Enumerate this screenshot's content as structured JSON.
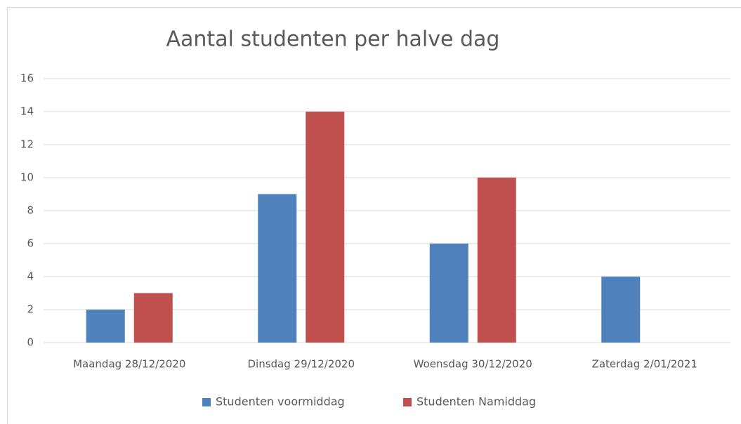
{
  "chart_data": {
    "type": "bar",
    "title": "Aantal studenten per halve dag",
    "categories": [
      "Maandag 28/12/2020",
      "Dinsdag 29/12/2020",
      "Woensdag 30/12/2020",
      "Zaterdag 2/01/2021"
    ],
    "series": [
      {
        "name": "Studenten voormiddag",
        "color": "#4f81bd",
        "values": [
          2,
          9,
          6,
          4
        ]
      },
      {
        "name": "Studenten Namiddag",
        "color": "#c0504d",
        "values": [
          3,
          14,
          10,
          0
        ]
      }
    ],
    "ylim": [
      0,
      16
    ],
    "yticks": [
      0,
      2,
      4,
      6,
      8,
      10,
      12,
      14,
      16
    ],
    "grid": true,
    "legend": "bottom"
  }
}
